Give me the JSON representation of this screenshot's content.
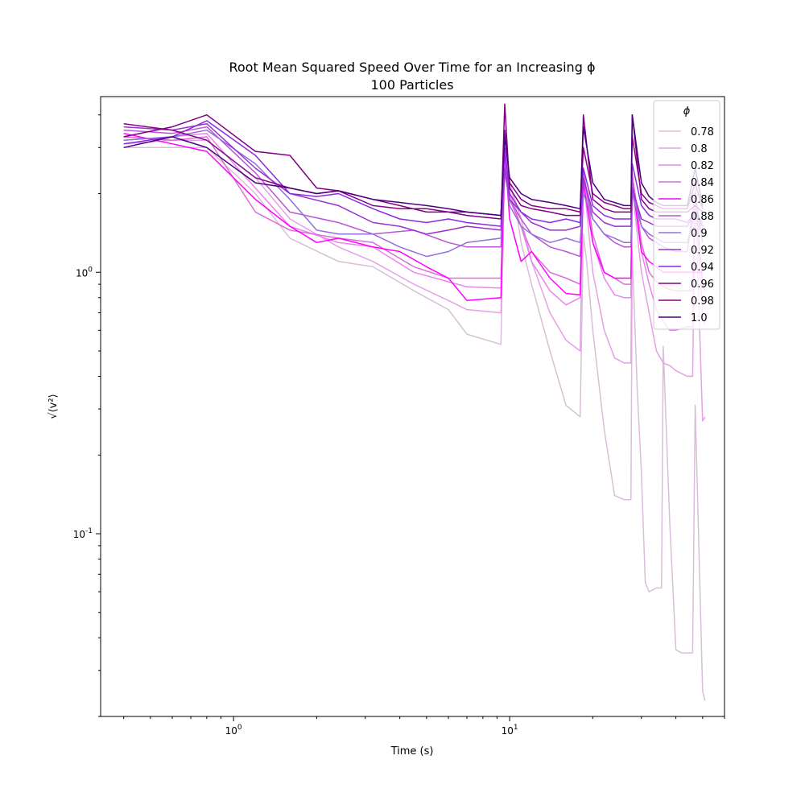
{
  "chart_data": {
    "type": "line",
    "title": "Root Mean Squared Speed Over Time for an Increasing ϕ",
    "subtitle": "100 Particles",
    "xlabel": "Time (s)",
    "ylabel": "√⟨v²⟩",
    "xscale": "log",
    "yscale": "log",
    "xlim": [
      0.33,
      60
    ],
    "ylim": [
      0.02,
      4.7
    ],
    "x_ticks": [
      {
        "value": 1,
        "label": "10^0"
      },
      {
        "value": 10,
        "label": "10^1"
      }
    ],
    "y_ticks": [
      {
        "value": 0.1,
        "label": "10^-1"
      },
      {
        "value": 1,
        "label": "10^0"
      }
    ],
    "grid": false,
    "legend": {
      "title": "ϕ",
      "placement": "top-right"
    },
    "series": [
      {
        "name": "0.78",
        "color": "#d8bfd8",
        "x": [
          0.4,
          0.6,
          0.8,
          1.2,
          1.6,
          2.4,
          3.2,
          4.5,
          6,
          7,
          9.3,
          9.6,
          10,
          10.5,
          11,
          12,
          14,
          16,
          18,
          18.5,
          19,
          20,
          22,
          24,
          26,
          27.5,
          27.8,
          29,
          30,
          31,
          32,
          34,
          35.5,
          36,
          38,
          40,
          42,
          44,
          46,
          47,
          50,
          51
        ],
        "y": [
          3.0,
          3.0,
          3.0,
          2.0,
          1.35,
          1.1,
          1.05,
          0.85,
          0.72,
          0.58,
          0.53,
          2.6,
          2.2,
          1.8,
          1.3,
          0.9,
          0.5,
          0.31,
          0.28,
          1.4,
          1.1,
          0.6,
          0.25,
          0.14,
          0.135,
          0.135,
          1.2,
          0.35,
          0.17,
          0.065,
          0.06,
          0.062,
          0.062,
          0.52,
          0.11,
          0.036,
          0.035,
          0.035,
          0.035,
          0.31,
          0.025,
          0.023
        ]
      },
      {
        "name": "0.8",
        "color": "#e6a0e6",
        "x": [
          0.4,
          0.6,
          0.8,
          1.2,
          1.6,
          2.4,
          3.2,
          4.5,
          6,
          7,
          9.3,
          9.6,
          10,
          11,
          12,
          14,
          16,
          18,
          18.5,
          20,
          22,
          24,
          26,
          27.5,
          27.8,
          30,
          32,
          34,
          36,
          38,
          40,
          44,
          46,
          47,
          50,
          51
        ],
        "y": [
          3.1,
          3.2,
          3.2,
          2.3,
          1.6,
          1.25,
          1.1,
          0.9,
          0.78,
          0.72,
          0.7,
          2.5,
          2.2,
          1.6,
          1.1,
          0.7,
          0.55,
          0.5,
          2.3,
          1.0,
          0.6,
          0.47,
          0.45,
          0.45,
          2.1,
          1.0,
          0.7,
          0.5,
          0.45,
          0.44,
          0.42,
          0.4,
          0.4,
          2.0,
          0.27,
          0.28
        ]
      },
      {
        "name": "0.82",
        "color": "#ee82ee",
        "x": [
          0.4,
          0.6,
          0.8,
          1.2,
          1.6,
          2.4,
          3.2,
          4.5,
          6,
          7,
          9.3,
          9.6,
          10,
          11,
          12,
          14,
          16,
          18,
          18.5,
          20,
          22,
          24,
          26,
          27.5,
          27.8,
          30,
          32,
          34,
          36,
          38,
          40,
          44,
          46,
          47,
          50,
          51
        ],
        "y": [
          3.2,
          3.3,
          3.4,
          2.1,
          1.5,
          1.3,
          1.25,
          1.0,
          0.92,
          0.88,
          0.87,
          2.7,
          2.0,
          1.5,
          1.1,
          0.85,
          0.75,
          0.8,
          2.4,
          1.3,
          0.95,
          0.82,
          0.8,
          0.8,
          2.2,
          1.2,
          0.9,
          0.72,
          0.65,
          0.6,
          0.6,
          0.62,
          0.62,
          2.0,
          0.7,
          0.63
        ]
      },
      {
        "name": "0.84",
        "color": "#da70d6",
        "x": [
          0.4,
          0.6,
          0.8,
          1.2,
          1.6,
          2.4,
          3.2,
          4.5,
          6,
          7,
          9.3,
          9.6,
          10,
          11,
          12,
          14,
          16,
          18,
          18.5,
          20,
          22,
          24,
          26,
          27.5,
          27.8,
          30,
          32,
          34,
          36,
          38,
          40,
          44,
          46,
          47,
          50,
          51
        ],
        "y": [
          3.3,
          3.2,
          3.3,
          1.7,
          1.45,
          1.35,
          1.3,
          1.05,
          0.95,
          0.95,
          0.95,
          2.8,
          1.9,
          1.5,
          1.2,
          1.0,
          0.95,
          0.9,
          2.5,
          1.4,
          1.0,
          0.95,
          0.9,
          0.9,
          2.4,
          1.3,
          1.0,
          0.92,
          0.88,
          0.86,
          0.85,
          0.85,
          0.85,
          2.1,
          0.9,
          0.85
        ]
      },
      {
        "name": "0.86",
        "color": "#ff00ff",
        "x": [
          0.4,
          0.6,
          0.8,
          1.2,
          1.6,
          2.0,
          2.4,
          3.2,
          4.0,
          5.0,
          6,
          7,
          9.3,
          9.6,
          10,
          11,
          12,
          14,
          16,
          18,
          18.5,
          20,
          22,
          24,
          26,
          27.5,
          27.8,
          30,
          32,
          34,
          36,
          40,
          44,
          47,
          50
        ],
        "y": [
          3.4,
          3.1,
          2.9,
          1.9,
          1.5,
          1.3,
          1.35,
          1.25,
          1.2,
          1.05,
          0.95,
          0.78,
          0.8,
          2.9,
          1.6,
          1.1,
          1.2,
          0.95,
          0.83,
          0.82,
          2.2,
          1.3,
          1.0,
          0.95,
          0.95,
          0.95,
          2.2,
          1.2,
          1.1,
          1.05,
          1.0,
          1.0,
          1.0,
          1.0,
          1.0
        ]
      },
      {
        "name": "0.88",
        "color": "#ba55d3",
        "x": [
          0.4,
          0.6,
          0.8,
          1.2,
          1.6,
          2.4,
          3.2,
          4.5,
          6,
          7,
          9.3,
          9.6,
          10,
          11,
          12,
          14,
          16,
          18,
          18.5,
          20,
          22,
          24,
          26,
          27.5,
          27.8,
          30,
          32,
          34,
          36,
          40,
          44,
          47,
          50
        ],
        "y": [
          3.5,
          3.4,
          3.6,
          2.4,
          1.7,
          1.55,
          1.4,
          1.45,
          1.3,
          1.25,
          1.25,
          2.4,
          1.9,
          1.6,
          1.4,
          1.25,
          1.2,
          1.15,
          2.3,
          1.6,
          1.4,
          1.3,
          1.25,
          1.25,
          2.2,
          1.5,
          1.35,
          1.3,
          1.25,
          1.2,
          1.2,
          2.0,
          1.3
        ]
      },
      {
        "name": "0.9",
        "color": "#9370db",
        "x": [
          0.4,
          0.6,
          0.8,
          1.2,
          1.6,
          2.0,
          2.4,
          3.2,
          4.0,
          5.0,
          6,
          7,
          9.3,
          9.6,
          10,
          11,
          12,
          14,
          16,
          18,
          18.5,
          20,
          22,
          24,
          26,
          27.5,
          27.8,
          30,
          32,
          34,
          36,
          40,
          44,
          47,
          50
        ],
        "y": [
          3.2,
          3.3,
          3.5,
          2.6,
          1.9,
          1.45,
          1.4,
          1.4,
          1.25,
          1.15,
          1.2,
          1.3,
          1.35,
          2.6,
          1.8,
          1.5,
          1.4,
          1.3,
          1.35,
          1.3,
          2.0,
          1.6,
          1.4,
          1.35,
          1.3,
          1.3,
          2.0,
          1.5,
          1.4,
          1.35,
          1.3,
          1.3,
          1.3,
          1.7,
          1.35
        ]
      },
      {
        "name": "0.92",
        "color": "#9932cc",
        "x": [
          0.4,
          0.6,
          0.8,
          1.2,
          1.6,
          2.4,
          3.2,
          4.0,
          5.0,
          6,
          7,
          9.3,
          9.6,
          10,
          11,
          12,
          14,
          16,
          18,
          18.5,
          20,
          22,
          24,
          26,
          27.5,
          27.8,
          30,
          32,
          34,
          36,
          40,
          44,
          47,
          50
        ],
        "y": [
          3.6,
          3.5,
          3.7,
          2.5,
          2.0,
          1.8,
          1.55,
          1.5,
          1.4,
          1.45,
          1.5,
          1.45,
          2.5,
          1.9,
          1.7,
          1.55,
          1.45,
          1.45,
          1.5,
          2.3,
          1.7,
          1.55,
          1.5,
          1.5,
          1.5,
          2.1,
          1.6,
          1.55,
          1.5,
          1.5,
          1.5,
          1.5,
          1.7,
          1.5
        ]
      },
      {
        "name": "0.94",
        "color": "#8a2be2",
        "x": [
          0.4,
          0.6,
          0.8,
          1.2,
          1.6,
          2.0,
          2.4,
          3.2,
          4.0,
          5.0,
          6,
          7,
          9.3,
          9.6,
          10,
          11,
          12,
          14,
          16,
          18,
          18.5,
          20,
          22,
          24,
          26,
          27.5,
          27.8,
          30,
          32,
          34,
          36,
          40,
          44,
          47,
          50
        ],
        "y": [
          3.1,
          3.3,
          3.8,
          2.8,
          2.0,
          1.95,
          2.0,
          1.75,
          1.6,
          1.55,
          1.6,
          1.55,
          1.5,
          3.0,
          2.0,
          1.7,
          1.6,
          1.55,
          1.6,
          1.55,
          2.5,
          1.8,
          1.65,
          1.6,
          1.6,
          1.6,
          2.6,
          1.8,
          1.65,
          1.6,
          1.6,
          1.6,
          1.55,
          1.7,
          1.55
        ]
      },
      {
        "name": "0.96",
        "color": "#800080",
        "x": [
          0.4,
          0.6,
          0.8,
          1.2,
          1.6,
          2.0,
          2.4,
          3.2,
          4.0,
          5.0,
          6,
          7,
          9.3,
          9.6,
          10,
          11,
          12,
          14,
          16,
          18,
          18.5,
          20,
          22,
          24,
          26,
          27.5,
          27.8,
          30,
          32,
          34,
          36,
          40,
          44,
          47,
          50
        ],
        "y": [
          3.3,
          3.6,
          4.0,
          2.9,
          2.8,
          2.1,
          2.05,
          1.9,
          1.8,
          1.7,
          1.7,
          1.65,
          1.6,
          4.4,
          2.1,
          1.8,
          1.75,
          1.7,
          1.65,
          1.65,
          4.0,
          1.9,
          1.75,
          1.7,
          1.7,
          1.7,
          4.0,
          1.9,
          1.75,
          1.7,
          1.7,
          1.7,
          1.7,
          1.8,
          1.7
        ]
      },
      {
        "name": "0.98",
        "color": "#8b008b",
        "x": [
          0.4,
          0.6,
          0.8,
          1.2,
          1.6,
          2.0,
          2.4,
          3.2,
          4.0,
          5.0,
          6,
          7,
          9.3,
          9.6,
          10,
          11,
          12,
          14,
          16,
          18,
          18.5,
          20,
          22,
          24,
          26,
          27.5,
          27.8,
          30,
          32,
          34,
          36,
          40,
          44,
          47,
          50
        ],
        "y": [
          3.7,
          3.5,
          3.2,
          2.3,
          2.1,
          2.0,
          2.05,
          1.8,
          1.75,
          1.75,
          1.7,
          1.7,
          1.65,
          3.5,
          2.2,
          1.9,
          1.8,
          1.75,
          1.75,
          1.7,
          3.0,
          2.0,
          1.85,
          1.8,
          1.75,
          1.75,
          3.3,
          2.0,
          1.85,
          1.8,
          1.75,
          1.75,
          1.75,
          2.2,
          1.75
        ]
      },
      {
        "name": "1.0",
        "color": "#4b0082",
        "x": [
          0.4,
          0.6,
          0.8,
          1.2,
          1.6,
          2.0,
          2.4,
          3.2,
          4.0,
          5.0,
          6,
          7,
          9.3,
          9.6,
          10,
          11,
          12,
          14,
          16,
          18,
          18.5,
          20,
          22,
          24,
          26,
          27.5,
          27.8,
          30,
          32,
          34,
          36,
          40,
          44,
          47,
          50
        ],
        "y": [
          3.0,
          3.3,
          3.0,
          2.2,
          2.1,
          2.0,
          2.05,
          1.9,
          1.85,
          1.8,
          1.75,
          1.7,
          1.65,
          3.3,
          2.3,
          2.0,
          1.9,
          1.85,
          1.8,
          1.75,
          3.6,
          2.2,
          1.9,
          1.85,
          1.8,
          1.8,
          4.0,
          2.2,
          1.95,
          1.85,
          1.8,
          1.8,
          1.8,
          2.5,
          1.8
        ]
      }
    ]
  }
}
